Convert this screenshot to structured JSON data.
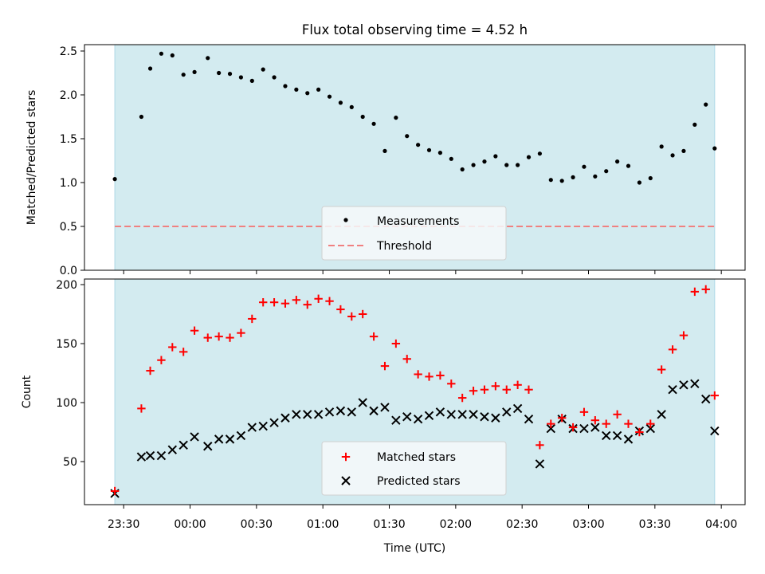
{
  "title": "Flux total observing time = 4.52 h",
  "colors": {
    "shade": "#d3ebf0",
    "shade_edge": "#add8e6",
    "threshold": "#f08080",
    "matched": "#ff0000",
    "predicted": "#000000",
    "measurement": "#000000"
  },
  "chart_data": [
    {
      "type": "scatter",
      "ylabel": "Matched/Predicted stars",
      "ylim": [
        0,
        2.6
      ],
      "yticks": [
        "0.0",
        "0.5",
        "1.0",
        "1.5",
        "2.0",
        "2.5"
      ],
      "shaded_interval": [
        "23:26",
        "03:57"
      ],
      "legend": {
        "placement": "lower-center",
        "entries": [
          "Measurements",
          "Threshold"
        ]
      },
      "threshold": 0.5,
      "x": [
        "23:26",
        "23:38",
        "23:42",
        "23:47",
        "23:52",
        "23:57",
        "00:02",
        "00:08",
        "00:13",
        "00:18",
        "00:23",
        "00:28",
        "00:33",
        "00:38",
        "00:43",
        "00:48",
        "00:53",
        "00:58",
        "01:03",
        "01:08",
        "01:13",
        "01:18",
        "01:23",
        "01:28",
        "01:33",
        "01:38",
        "01:43",
        "01:48",
        "01:53",
        "01:58",
        "02:03",
        "02:08",
        "02:13",
        "02:18",
        "02:23",
        "02:28",
        "02:33",
        "02:38",
        "02:43",
        "02:48",
        "02:53",
        "02:58",
        "03:03",
        "03:08",
        "03:13",
        "03:18",
        "03:23",
        "03:28",
        "03:33",
        "03:38",
        "03:43",
        "03:48",
        "03:53",
        "03:57"
      ],
      "measurements": [
        1.04,
        1.75,
        2.3,
        2.47,
        2.45,
        2.23,
        2.26,
        2.42,
        2.25,
        2.24,
        2.2,
        2.16,
        2.29,
        2.2,
        2.1,
        2.06,
        2.02,
        2.06,
        1.98,
        1.91,
        1.86,
        1.75,
        1.67,
        1.36,
        1.74,
        1.53,
        1.43,
        1.37,
        1.34,
        1.27,
        1.15,
        1.2,
        1.24,
        1.3,
        1.2,
        1.2,
        1.29,
        1.33,
        1.03,
        1.02,
        1.06,
        1.18,
        1.07,
        1.13,
        1.24,
        1.19,
        1.0,
        1.05,
        1.41,
        1.31,
        1.36,
        1.66,
        1.89,
        1.39
      ]
    },
    {
      "type": "scatter",
      "xlabel": "Time (UTC)",
      "ylabel": "Count",
      "ylim": [
        15,
        205
      ],
      "yticks": [
        "50",
        "100",
        "150",
        "200"
      ],
      "xticks": [
        "23:30",
        "00:00",
        "00:30",
        "01:00",
        "01:30",
        "02:00",
        "02:30",
        "03:00",
        "03:30",
        "04:00"
      ],
      "legend": {
        "placement": "lower-center",
        "entries": [
          "Matched stars",
          "Predicted stars"
        ]
      },
      "series": [
        {
          "name": "Matched stars",
          "values": [
            25,
            95,
            127,
            136,
            147,
            143,
            161,
            155,
            156,
            155,
            159,
            171,
            185,
            185,
            184,
            187,
            183,
            188,
            186,
            179,
            173,
            175,
            156,
            131,
            150,
            137,
            124,
            122,
            123,
            116,
            104,
            110,
            111,
            114,
            111,
            115,
            111,
            64,
            82,
            87,
            79,
            92,
            85,
            82,
            90,
            82,
            75,
            82,
            128,
            145,
            157,
            194,
            196,
            106
          ]
        },
        {
          "name": "Predicted stars",
          "values": [
            23,
            54,
            55,
            55,
            60,
            64,
            71,
            63,
            69,
            69,
            72,
            79,
            80,
            83,
            87,
            90,
            90,
            90,
            92,
            93,
            92,
            100,
            93,
            96,
            85,
            88,
            86,
            89,
            92,
            90,
            90,
            90,
            88,
            87,
            92,
            95,
            86,
            48,
            78,
            86,
            78,
            78,
            79,
            72,
            72,
            69,
            76,
            78,
            90,
            111,
            115,
            116,
            103,
            76
          ]
        }
      ]
    }
  ]
}
